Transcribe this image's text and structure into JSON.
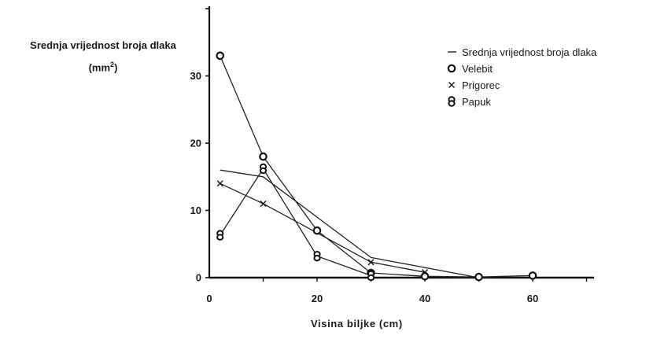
{
  "chart_data": {
    "type": "line",
    "ylabel_line1": "Srednja vrijednost broja dlaka",
    "ylabel_unit": "(mm",
    "ylabel_unit_sup": "2",
    "ylabel_unit_end": ")",
    "xlabel": "Visina biljke (cm)",
    "xlim": [
      0,
      70
    ],
    "ylim": [
      0,
      40
    ],
    "xticks": [
      0,
      20,
      40,
      60
    ],
    "yticks": [
      0,
      10,
      20,
      30
    ],
    "legend_position": "top-right",
    "series": [
      {
        "name": "Srednja vrijednost broja dlaka",
        "marker": "none",
        "x": [
          2,
          10,
          20,
          30,
          50
        ],
        "y": [
          16,
          15,
          9,
          3,
          0
        ]
      },
      {
        "name": "Velebit",
        "marker": "circle",
        "x": [
          2,
          10,
          20,
          30,
          40,
          50,
          60
        ],
        "y": [
          33,
          18,
          7,
          0.7,
          0.2,
          0.1,
          0.3
        ]
      },
      {
        "name": "Prigorec",
        "marker": "x",
        "x": [
          2,
          10,
          30,
          40
        ],
        "y": [
          14,
          11,
          2.3,
          0.8
        ]
      },
      {
        "name": "Papuk",
        "marker": "double-circle",
        "x": [
          2,
          10,
          20,
          30
        ],
        "y": [
          6.3,
          16.2,
          3.2,
          0.3
        ]
      }
    ]
  }
}
